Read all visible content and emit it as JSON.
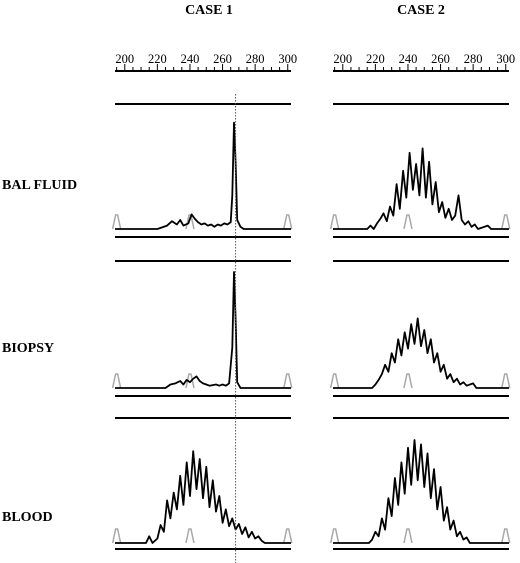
{
  "columns": [
    {
      "title": "CASE 1"
    },
    {
      "title": "CASE 2"
    }
  ],
  "rows": [
    {
      "label": "BAL FLUID"
    },
    {
      "label": "BIOPSY"
    },
    {
      "label": "BLOOD"
    }
  ],
  "colors": {
    "trace": "#000000",
    "marker": "#a8a8a8",
    "ruler": "#000000",
    "reference_line": "#555555"
  },
  "chart_data": [
    {
      "type": "line",
      "title": "CASE 1",
      "x_ticks": [
        200,
        220,
        240,
        260,
        280,
        300
      ],
      "xlim": [
        194,
        302
      ],
      "marker_peaks": [
        195,
        240,
        300
      ],
      "reference_line_x": 268,
      "panels": [
        {
          "label": "BAL FLUID",
          "series": [
            {
              "points": [
                [
                  194,
                  0
                ],
                [
                  220,
                  0
                ],
                [
                  226,
                  3
                ],
                [
                  229,
                  7
                ],
                [
                  232,
                  4
                ],
                [
                  234,
                  8
                ],
                [
                  236,
                  3
                ],
                [
                  239,
                  5
                ],
                [
                  241,
                  13
                ],
                [
                  243,
                  9
                ],
                [
                  245,
                  6
                ],
                [
                  247,
                  4
                ],
                [
                  249,
                  5
                ],
                [
                  251,
                  3
                ],
                [
                  253,
                  4
                ],
                [
                  255,
                  2
                ],
                [
                  257,
                  4
                ],
                [
                  259,
                  3
                ],
                [
                  261,
                  5
                ],
                [
                  263,
                  4
                ],
                [
                  265,
                  6
                ],
                [
                  266,
                  30
                ],
                [
                  267,
                  95
                ],
                [
                  268,
                  60
                ],
                [
                  269,
                  8
                ],
                [
                  271,
                  2
                ],
                [
                  273,
                  0
                ],
                [
                  302,
                  0
                ]
              ]
            }
          ]
        },
        {
          "label": "BIOPSY",
          "series": [
            {
              "points": [
                [
                  194,
                  0
                ],
                [
                  225,
                  0
                ],
                [
                  228,
                  3
                ],
                [
                  231,
                  4
                ],
                [
                  234,
                  6
                ],
                [
                  236,
                  3
                ],
                [
                  238,
                  7
                ],
                [
                  240,
                  5
                ],
                [
                  242,
                  8
                ],
                [
                  244,
                  10
                ],
                [
                  246,
                  6
                ],
                [
                  248,
                  4
                ],
                [
                  250,
                  3
                ],
                [
                  252,
                  2
                ],
                [
                  256,
                  3
                ],
                [
                  258,
                  2
                ],
                [
                  260,
                  3
                ],
                [
                  262,
                  2
                ],
                [
                  264,
                  4
                ],
                [
                  266,
                  35
                ],
                [
                  267,
                  100
                ],
                [
                  268,
                  60
                ],
                [
                  269,
                  5
                ],
                [
                  271,
                  0
                ],
                [
                  302,
                  0
                ]
              ]
            }
          ]
        },
        {
          "label": "BLOOD",
          "series": [
            {
              "points": [
                [
                  194,
                  0
                ],
                [
                  213,
                  0
                ],
                [
                  215,
                  6
                ],
                [
                  217,
                  0
                ],
                [
                  220,
                  4
                ],
                [
                  222,
                  16
                ],
                [
                  224,
                  10
                ],
                [
                  226,
                  38
                ],
                [
                  228,
                  22
                ],
                [
                  230,
                  45
                ],
                [
                  232,
                  30
                ],
                [
                  234,
                  60
                ],
                [
                  236,
                  34
                ],
                [
                  238,
                  72
                ],
                [
                  240,
                  42
                ],
                [
                  242,
                  82
                ],
                [
                  244,
                  48
                ],
                [
                  246,
                  75
                ],
                [
                  248,
                  40
                ],
                [
                  250,
                  68
                ],
                [
                  252,
                  32
                ],
                [
                  254,
                  56
                ],
                [
                  256,
                  28
                ],
                [
                  258,
                  42
                ],
                [
                  260,
                  18
                ],
                [
                  262,
                  30
                ],
                [
                  264,
                  15
                ],
                [
                  266,
                  22
                ],
                [
                  268,
                  12
                ],
                [
                  270,
                  17
                ],
                [
                  272,
                  8
                ],
                [
                  274,
                  14
                ],
                [
                  276,
                  5
                ],
                [
                  278,
                  10
                ],
                [
                  280,
                  4
                ],
                [
                  282,
                  6
                ],
                [
                  284,
                  2
                ],
                [
                  286,
                  0
                ],
                [
                  302,
                  0
                ]
              ]
            }
          ]
        }
      ]
    },
    {
      "type": "line",
      "title": "CASE 2",
      "x_ticks": [
        200,
        220,
        240,
        260,
        280,
        300
      ],
      "xlim": [
        194,
        302
      ],
      "marker_peaks": [
        195,
        240,
        300
      ],
      "panels": [
        {
          "label": "BAL FLUID",
          "series": [
            {
              "points": [
                [
                  194,
                  0
                ],
                [
                  215,
                  0
                ],
                [
                  217,
                  3
                ],
                [
                  219,
                  0
                ],
                [
                  221,
                  5
                ],
                [
                  223,
                  9
                ],
                [
                  225,
                  14
                ],
                [
                  227,
                  7
                ],
                [
                  229,
                  20
                ],
                [
                  231,
                  12
                ],
                [
                  233,
                  40
                ],
                [
                  235,
                  18
                ],
                [
                  237,
                  52
                ],
                [
                  239,
                  28
                ],
                [
                  241,
                  68
                ],
                [
                  243,
                  35
                ],
                [
                  245,
                  58
                ],
                [
                  247,
                  30
                ],
                [
                  249,
                  72
                ],
                [
                  251,
                  28
                ],
                [
                  253,
                  60
                ],
                [
                  255,
                  22
                ],
                [
                  257,
                  42
                ],
                [
                  259,
                  15
                ],
                [
                  261,
                  24
                ],
                [
                  263,
                  10
                ],
                [
                  265,
                  18
                ],
                [
                  267,
                  8
                ],
                [
                  269,
                  12
                ],
                [
                  271,
                  30
                ],
                [
                  273,
                  8
                ],
                [
                  275,
                  4
                ],
                [
                  277,
                  7
                ],
                [
                  279,
                  2
                ],
                [
                  281,
                  4
                ],
                [
                  283,
                  0
                ],
                [
                  289,
                  3
                ],
                [
                  291,
                  0
                ],
                [
                  302,
                  0
                ]
              ]
            }
          ]
        },
        {
          "label": "BIOPSY",
          "series": [
            {
              "points": [
                [
                  194,
                  0
                ],
                [
                  218,
                  0
                ],
                [
                  220,
                  3
                ],
                [
                  222,
                  7
                ],
                [
                  224,
                  12
                ],
                [
                  226,
                  20
                ],
                [
                  228,
                  14
                ],
                [
                  230,
                  30
                ],
                [
                  232,
                  22
                ],
                [
                  234,
                  42
                ],
                [
                  236,
                  28
                ],
                [
                  238,
                  48
                ],
                [
                  240,
                  34
                ],
                [
                  242,
                  55
                ],
                [
                  244,
                  38
                ],
                [
                  246,
                  60
                ],
                [
                  248,
                  36
                ],
                [
                  250,
                  50
                ],
                [
                  252,
                  30
                ],
                [
                  254,
                  42
                ],
                [
                  256,
                  22
                ],
                [
                  258,
                  30
                ],
                [
                  260,
                  14
                ],
                [
                  262,
                  20
                ],
                [
                  264,
                  8
                ],
                [
                  266,
                  12
                ],
                [
                  268,
                  5
                ],
                [
                  270,
                  8
                ],
                [
                  272,
                  3
                ],
                [
                  274,
                  5
                ],
                [
                  276,
                  2
                ],
                [
                  280,
                  4
                ],
                [
                  282,
                  0
                ],
                [
                  302,
                  0
                ]
              ]
            }
          ]
        },
        {
          "label": "BLOOD",
          "series": [
            {
              "points": [
                [
                  194,
                  0
                ],
                [
                  216,
                  0
                ],
                [
                  218,
                  3
                ],
                [
                  220,
                  10
                ],
                [
                  222,
                  6
                ],
                [
                  224,
                  22
                ],
                [
                  226,
                  12
                ],
                [
                  228,
                  40
                ],
                [
                  230,
                  24
                ],
                [
                  232,
                  58
                ],
                [
                  234,
                  34
                ],
                [
                  236,
                  72
                ],
                [
                  238,
                  44
                ],
                [
                  240,
                  85
                ],
                [
                  242,
                  52
                ],
                [
                  244,
                  92
                ],
                [
                  246,
                  56
                ],
                [
                  248,
                  88
                ],
                [
                  250,
                  50
                ],
                [
                  252,
                  80
                ],
                [
                  254,
                  40
                ],
                [
                  256,
                  66
                ],
                [
                  258,
                  30
                ],
                [
                  260,
                  50
                ],
                [
                  262,
                  20
                ],
                [
                  264,
                  32
                ],
                [
                  266,
                  12
                ],
                [
                  268,
                  20
                ],
                [
                  270,
                  6
                ],
                [
                  272,
                  10
                ],
                [
                  274,
                  3
                ],
                [
                  276,
                  5
                ],
                [
                  278,
                  0
                ],
                [
                  302,
                  0
                ]
              ]
            }
          ]
        }
      ]
    }
  ]
}
